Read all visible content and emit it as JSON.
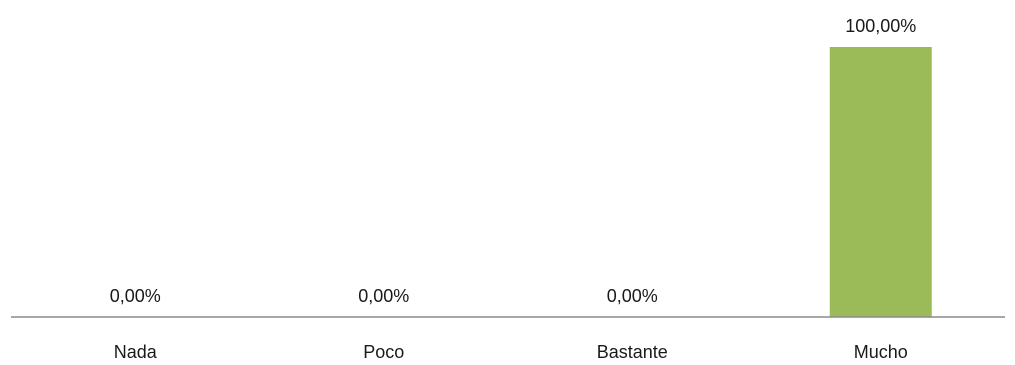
{
  "chart_data": {
    "type": "bar",
    "categories": [
      "Nada",
      "Poco",
      "Bastante",
      "Mucho"
    ],
    "values": [
      0,
      0,
      0,
      100
    ],
    "value_labels": [
      "0,00%",
      "0,00%",
      "0,00%",
      "100,00%"
    ],
    "ylim": [
      0,
      100
    ],
    "grid": false,
    "legend": "none",
    "bar_color": "#9bbb59",
    "axis_color": "#8c8c8c"
  }
}
